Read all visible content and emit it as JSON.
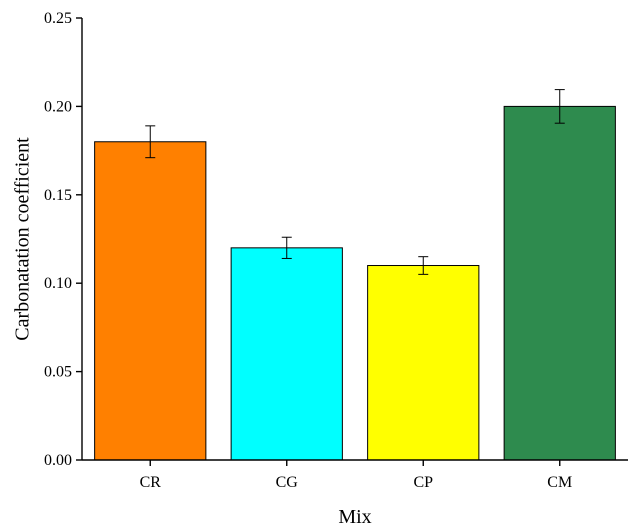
{
  "chart_data": {
    "type": "bar",
    "title": "",
    "xlabel": "Mix",
    "ylabel": "Carbonatation coefficient",
    "ylim": [
      0,
      0.25
    ],
    "yticks": [
      "0.00",
      "0.05",
      "0.10",
      "0.15",
      "0.20",
      "0.25"
    ],
    "categories": [
      "CR",
      "CG",
      "CP",
      "CM"
    ],
    "values": [
      0.18,
      0.12,
      0.11,
      0.2
    ],
    "errors": [
      0.009,
      0.006,
      0.005,
      0.0095
    ],
    "colors": [
      "#ff8000",
      "#00ffff",
      "#ffff00",
      "#2e8b4e"
    ],
    "grid": false,
    "legend": "none"
  }
}
